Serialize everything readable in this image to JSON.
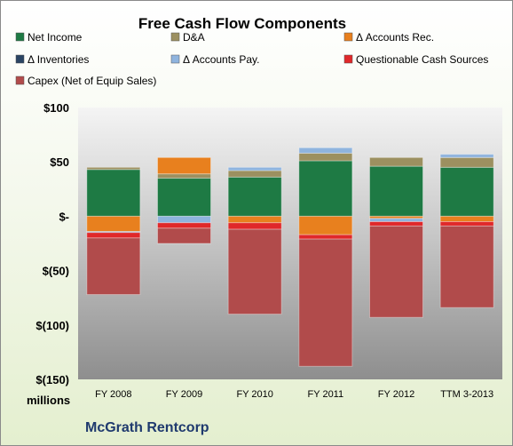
{
  "chart_data": {
    "type": "bar",
    "stacked": true,
    "title": "Free Cash Flow Components",
    "unit_label": "millions",
    "footer": "McGrath Rentcorp",
    "categories": [
      "FY 2008",
      "FY 2009",
      "FY 2010",
      "FY 2011",
      "FY 2012",
      "TTM 3-2013"
    ],
    "ylim": [
      -150,
      100
    ],
    "yticks": [
      100,
      50,
      0,
      -50,
      -100,
      -150
    ],
    "ytick_labels": [
      "$100",
      "$50",
      "$-",
      "$(50)",
      "$(100)",
      "$(150)"
    ],
    "grid": false,
    "legend_position": "top",
    "series": [
      {
        "name": "Net Income",
        "color": "#1e7a44",
        "values": [
          43,
          35,
          36,
          51,
          46,
          45
        ]
      },
      {
        "name": "D&A",
        "color": "#9c9060",
        "values": [
          2,
          4,
          6,
          7,
          8,
          9
        ]
      },
      {
        "name": "Δ Accounts Rec.",
        "color": "#e8801e",
        "values": [
          -14,
          15,
          -6,
          -17,
          -2,
          -5
        ]
      },
      {
        "name": "Δ Inventories",
        "color": "#2a4463",
        "values": [
          0,
          0,
          0,
          0,
          0,
          0
        ]
      },
      {
        "name": "Δ Accounts Pay.",
        "color": "#8fb4de",
        "values": [
          -1,
          -6,
          3,
          5,
          -3,
          3
        ]
      },
      {
        "name": "Questionable Cash Sources",
        "color": "#e0282a",
        "values": [
          -5,
          -5,
          -6,
          -4,
          -4,
          -4
        ]
      },
      {
        "name": "Capex (Net of Equip Sales)",
        "color": "#b14b4b",
        "values": [
          -52,
          -14,
          -78,
          -117,
          -84,
          -75
        ]
      }
    ]
  }
}
